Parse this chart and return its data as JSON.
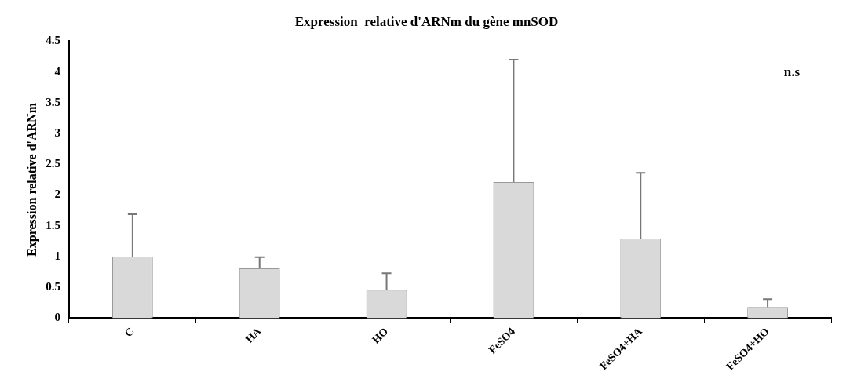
{
  "chart_data": {
    "type": "bar",
    "title": "Expression  relative d'ARNm du gène mnSOD",
    "ylabel": "Expression relative d'ARNm",
    "categories": [
      "C",
      "HA",
      "HO",
      "FeSO4",
      "FeSO4+HA",
      "FeSO4+HO"
    ],
    "values": [
      1.0,
      0.81,
      0.46,
      2.21,
      1.29,
      0.18
    ],
    "errors": [
      [
        1.0,
        1.69
      ],
      [
        0.81,
        0.99
      ],
      [
        0.46,
        0.73
      ],
      [
        2.21,
        4.2
      ],
      [
        1.29,
        2.36
      ],
      [
        0.18,
        0.31
      ]
    ],
    "color": "#d9d9d9",
    "ylim": [
      0,
      4.5
    ],
    "yticks": [
      0,
      0.5,
      1,
      1.5,
      2,
      2.5,
      3,
      3.5,
      4,
      4.5
    ],
    "annotations": [
      "n.s"
    ]
  }
}
